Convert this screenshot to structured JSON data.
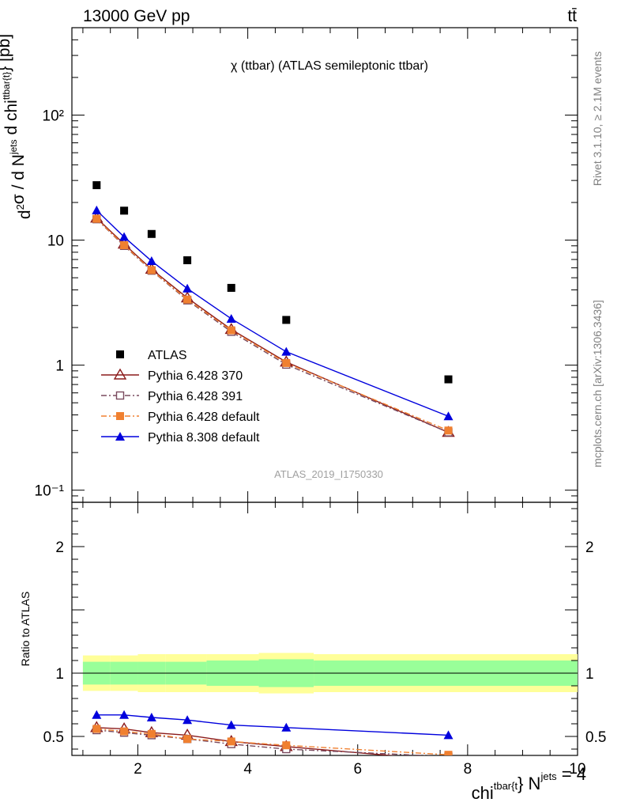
{
  "header": {
    "energy": "13000 GeV pp",
    "process": "tt̄"
  },
  "side": {
    "rivet": "Rivet 3.1.10, ≥ 2.1M events",
    "mcplots": "mcplots.cern.ch [arXiv:1306.3436]"
  },
  "chart_data": [
    {
      "type": "scatter",
      "title": "χ (ttbar) (ATLAS semileptonic ttbar)",
      "watermark": "ATLAS_2019_I1750330",
      "ylabel": "d²σ / d N^jets d chi^ttbar{t} [pb]",
      "yscale": "log",
      "ylim": [
        0.08,
        500
      ],
      "xlim": [
        0.8,
        10
      ],
      "ytick_labels": [
        "10⁻¹",
        "1",
        "10",
        "10²"
      ],
      "legend_position": "lower-left",
      "series": [
        {
          "name": "ATLAS",
          "color": "#000000",
          "marker": "filled-square",
          "line": "none",
          "x": [
            1.25,
            1.75,
            2.25,
            2.9,
            3.7,
            4.7,
            7.65
          ],
          "y": [
            27.5,
            17.2,
            11.2,
            6.9,
            4.15,
            2.3,
            0.77
          ]
        },
        {
          "name": "Pythia 6.428 370",
          "color": "#8b1a1a",
          "marker": "open-triangle",
          "line": "solid",
          "x": [
            1.25,
            1.75,
            2.25,
            2.9,
            3.7,
            4.7,
            7.65
          ],
          "y": [
            15.0,
            9.3,
            5.85,
            3.45,
            1.93,
            1.06,
            0.29
          ]
        },
        {
          "name": "Pythia 6.428 391",
          "color": "#7a4a5e",
          "marker": "open-square",
          "line": "dash-dot",
          "x": [
            1.25,
            1.75,
            2.25,
            2.9,
            3.7,
            4.7,
            7.65
          ],
          "y": [
            14.7,
            9.0,
            5.7,
            3.3,
            1.85,
            1.01,
            0.29
          ]
        },
        {
          "name": "Pythia 6.428 default",
          "color": "#f08030",
          "marker": "filled-square",
          "line": "dash-dot",
          "x": [
            1.25,
            1.75,
            2.25,
            2.9,
            3.7,
            4.7,
            7.65
          ],
          "y": [
            14.8,
            9.1,
            5.75,
            3.35,
            1.9,
            1.04,
            0.3
          ]
        },
        {
          "name": "Pythia 8.308 default",
          "color": "#0000dd",
          "marker": "filled-triangle",
          "line": "solid",
          "x": [
            1.25,
            1.75,
            2.25,
            2.9,
            3.7,
            4.7,
            7.65
          ],
          "y": [
            17.3,
            10.6,
            6.8,
            4.1,
            2.35,
            1.28,
            0.39
          ]
        }
      ]
    },
    {
      "type": "line",
      "ylabel": "Ratio to ATLAS",
      "xlabel": "chi^tbar{t}} N^jets = 4",
      "ylim": [
        0.35,
        2.35
      ],
      "xlim": [
        0.8,
        10
      ],
      "xtick_labels": [
        "2",
        "4",
        "6",
        "8",
        "10"
      ],
      "ytick_labels": [
        "0.5",
        "1",
        "2"
      ],
      "bands": {
        "bins": [
          [
            1.0,
            1.5,
            2.0,
            2.5,
            3.25,
            4.2,
            5.2,
            10.0
          ]
        ],
        "green_half": [
          0.09,
          0.09,
          0.09,
          0.09,
          0.1,
          0.11,
          0.1
        ],
        "yellow_half": [
          0.14,
          0.14,
          0.15,
          0.15,
          0.15,
          0.16,
          0.15
        ],
        "green_color": "#99ff99",
        "yellow_color": "#ffff99"
      },
      "series": [
        {
          "name": "Pythia 6.428 370",
          "color": "#8b1a1a",
          "x": [
            1.25,
            1.75,
            2.25,
            2.9,
            3.7,
            4.7,
            7.65
          ],
          "y": [
            0.57,
            0.56,
            0.53,
            0.51,
            0.46,
            0.42,
            0.31
          ]
        },
        {
          "name": "Pythia 6.428 391",
          "color": "#7a4a5e",
          "x": [
            1.25,
            1.75,
            2.25,
            2.9,
            3.7,
            4.7,
            7.65
          ],
          "y": [
            0.55,
            0.53,
            0.51,
            0.48,
            0.44,
            0.4,
            0.34
          ]
        },
        {
          "name": "Pythia 6.428 default",
          "color": "#f08030",
          "x": [
            1.25,
            1.75,
            2.25,
            2.9,
            3.7,
            4.7,
            7.65
          ],
          "y": [
            0.56,
            0.54,
            0.52,
            0.48,
            0.46,
            0.43,
            0.355
          ]
        },
        {
          "name": "Pythia 8.308 default",
          "color": "#0000dd",
          "x": [
            1.25,
            1.75,
            2.25,
            2.9,
            3.7,
            4.7,
            7.65
          ],
          "y": [
            0.67,
            0.67,
            0.65,
            0.63,
            0.59,
            0.57,
            0.51
          ]
        }
      ]
    }
  ]
}
